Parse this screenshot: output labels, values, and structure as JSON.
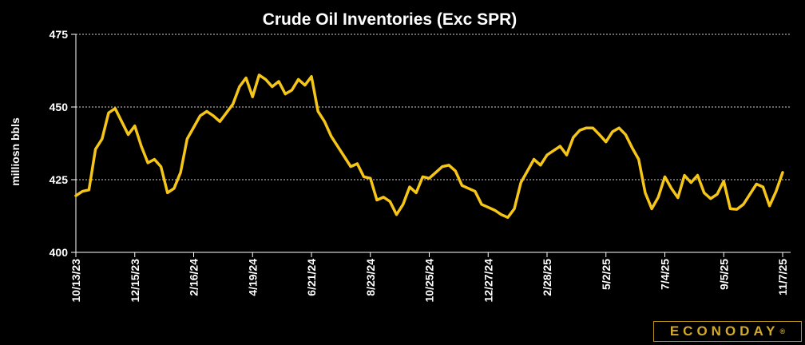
{
  "chart_data": {
    "type": "line",
    "title": "Crude Oil Inventories (Exc SPR)",
    "ylabel": "milliosn bbls",
    "xlabel": "",
    "ylim": [
      400,
      475
    ],
    "yticks": [
      400,
      425,
      450,
      475
    ],
    "grid": "horizontal dashed",
    "legend": "none",
    "line_color": "#f5c518",
    "xtick_labels": [
      "10/13/23",
      "12/15/23",
      "2/16/24",
      "4/19/24",
      "6/21/24",
      "8/23/24",
      "10/25/24",
      "12/27/24",
      "2/28/25",
      "5/2/25",
      "7/4/25",
      "9/5/25",
      "11/7/25"
    ],
    "series": [
      {
        "values": [
          419.5,
          421,
          421.5,
          435.5,
          439,
          448,
          449.5,
          445,
          440.5,
          443.5,
          436.5,
          430.8,
          432,
          429.5,
          420.5,
          422,
          427.5,
          439,
          443,
          447,
          448.5,
          447,
          445,
          448,
          451,
          457,
          460,
          453.5,
          461,
          459.5,
          457,
          458.8,
          454.5,
          455.8,
          459.5,
          457.5,
          460.5,
          448.5,
          445,
          440,
          436.5,
          433,
          429.5,
          430.5,
          426,
          425.5,
          418,
          419,
          417.5,
          413,
          416.5,
          422.5,
          420.5,
          426,
          425.5,
          427.5,
          429.5,
          430,
          428,
          423,
          422,
          421,
          416.5,
          415.5,
          414.5,
          413,
          412,
          415,
          424,
          428,
          432,
          430,
          433.5,
          435,
          436.5,
          433.5,
          439.5,
          442,
          442.8,
          442.8,
          440.5,
          438,
          441.5,
          442.8,
          440.5,
          436,
          432,
          420.5,
          415,
          419,
          426,
          422,
          418.8,
          426.5,
          424,
          426.5,
          420.5,
          418.5,
          420,
          424.5,
          415,
          414.8,
          416.5,
          420,
          423.5,
          422.5,
          416,
          421,
          427.5
        ]
      }
    ]
  },
  "branding": {
    "logo_text": "ECONODAY",
    "logo_mark": "®"
  }
}
